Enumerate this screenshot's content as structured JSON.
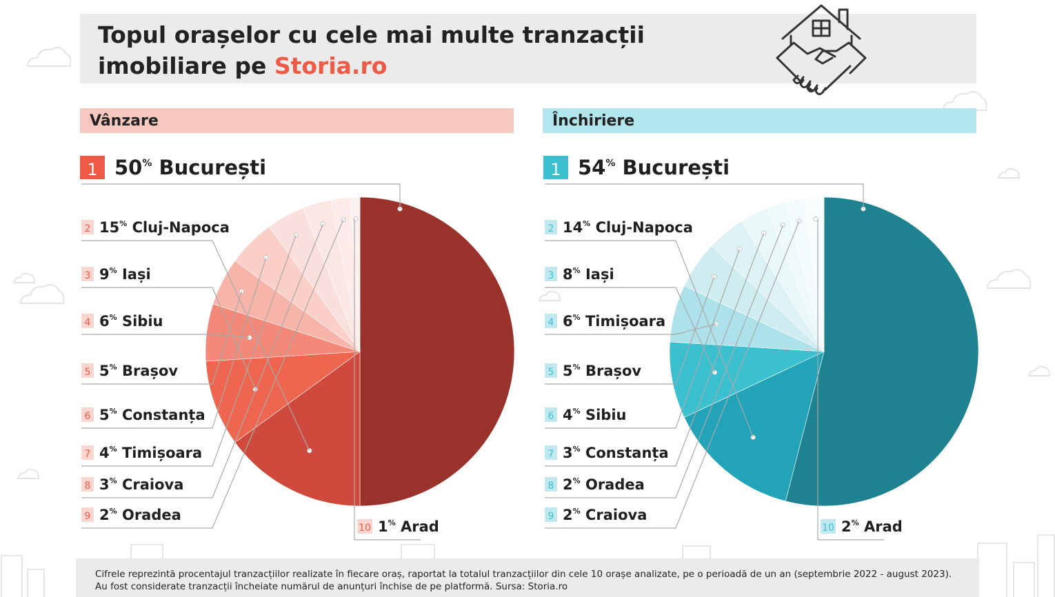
{
  "header": {
    "title_line1": "Topul orașelor cu cele mai multe tranzacții",
    "title_line2_prefix": "imobiliare pe ",
    "title_brand": "Storia.ro"
  },
  "footer": {
    "note": "Cifrele reprezintă procentajul tranzacțiilor realizate în fiecare oraș, raportat la totalul tranzacțiilor din cele 10 orașe analizate, pe o perioadă de un an (septembrie 2022 - august 2023). Au fost considerate tranzacții încheiate numărul de anunțuri închise de pe platformă. Sursa: Storia.ro"
  },
  "icons": {
    "header": "house-handshake-icon",
    "decor": "cloud-icon"
  },
  "chart_data": [
    {
      "type": "pie",
      "title": "Vânzare",
      "percent_suffix": "%",
      "categories": [
        "București",
        "Cluj-Napoca",
        "Iași",
        "Sibiu",
        "Brașov",
        "Constanța",
        "Timișoara",
        "Craiova",
        "Oradea",
        "Arad"
      ],
      "ranks": [
        "1",
        "2",
        "3",
        "4",
        "5",
        "6",
        "7",
        "8",
        "9",
        "10"
      ],
      "values": [
        50,
        15,
        9,
        6,
        5,
        5,
        4,
        3,
        2,
        1
      ],
      "colors": [
        "#99322b",
        "#cf4a3c",
        "#ef6650",
        "#f38a79",
        "#f7b5aa",
        "#f9cfc8",
        "#fae0dc",
        "#fbe7e4",
        "#fcebe8",
        "#fdf1ef"
      ],
      "rank_color": "#ee5a45",
      "rank_bg_light": "#fbd5cf"
    },
    {
      "type": "pie",
      "title": "Închiriere",
      "percent_suffix": "%",
      "categories": [
        "București",
        "Cluj-Napoca",
        "Iași",
        "Timișoara",
        "Brașov",
        "Sibiu",
        "Constanța",
        "Oradea",
        "Craiova",
        "Arad"
      ],
      "ranks": [
        "1",
        "2",
        "3",
        "4",
        "5",
        "6",
        "7",
        "8",
        "9",
        "10"
      ],
      "values": [
        54,
        14,
        8,
        6,
        5,
        4,
        3,
        2,
        2,
        2
      ],
      "colors": [
        "#1e8290",
        "#22a3b8",
        "#3bc0d0",
        "#aee2ea",
        "#cfecf0",
        "#def2f5",
        "#e9f7f9",
        "#eef9fa",
        "#f3fbfc",
        "#f7fdfd"
      ],
      "rank_color": "#3bc0d0",
      "rank_bg_light": "#bfe9ef"
    }
  ]
}
